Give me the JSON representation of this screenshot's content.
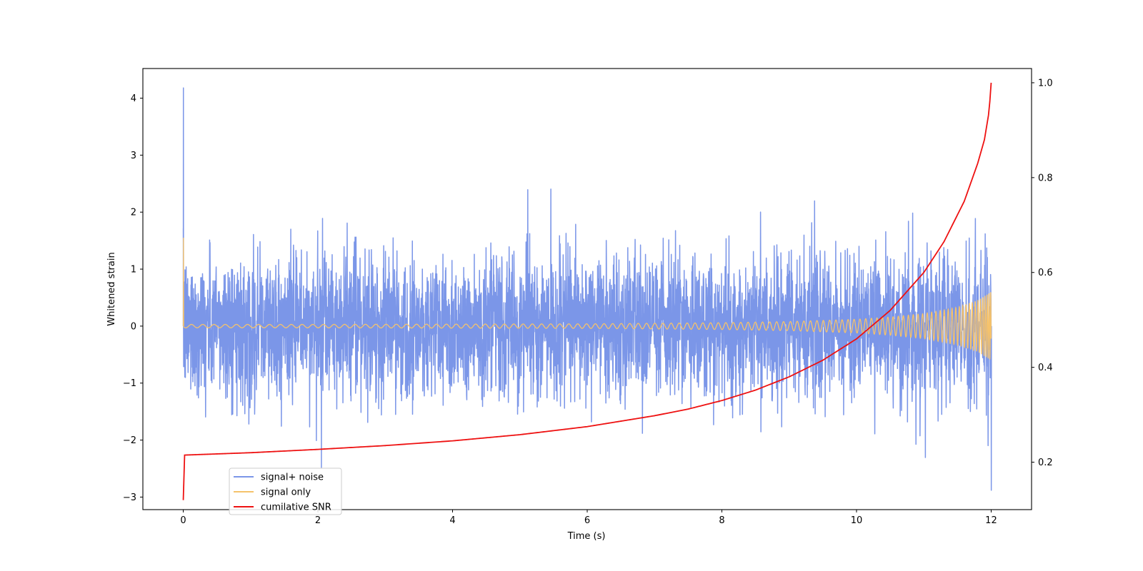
{
  "chart_data": {
    "type": "line",
    "xlabel": "Time (s)",
    "ylabel": "Whitened strain",
    "xlim": [
      -0.6,
      12.6
    ],
    "ylim": [
      -3.22,
      4.52
    ],
    "y2lim": [
      0.1,
      1.03
    ],
    "x_ticks": [
      0,
      2,
      4,
      6,
      8,
      10,
      12
    ],
    "y_ticks": [
      -3,
      -2,
      -1,
      0,
      1,
      2,
      3,
      4
    ],
    "y2_ticks": [
      0.2,
      0.4,
      0.6,
      0.8,
      1.0
    ],
    "x_tick_labels": [
      "0",
      "2",
      "4",
      "6",
      "8",
      "10",
      "12"
    ],
    "y_tick_labels": [
      "−3",
      "−2",
      "−1",
      "0",
      "1",
      "2",
      "3",
      "4"
    ],
    "y2_tick_labels": [
      "0.2",
      "0.4",
      "0.6",
      "0.8",
      "1.0"
    ],
    "grid": false,
    "legend_position": "lower-left",
    "series": [
      {
        "name": "signal+ noise",
        "color": "#7b96e8",
        "axis": "left",
        "description": "whitened data: signal plus approximately unit-variance noise, t from 0 to 12 s",
        "noise_std": 0.62,
        "x_range": [
          0,
          12
        ],
        "notable_points": [
          {
            "x": 0.0,
            "y": 4.18
          },
          {
            "x": 2.05,
            "y": -2.48
          },
          {
            "x": 12.0,
            "y": -2.88
          }
        ]
      },
      {
        "name": "signal only",
        "color": "#f5c26b",
        "axis": "left",
        "description": "chirp signal, amplitude grows from about 0.03 to 0.6 as t approaches 12 s",
        "x": [
          0,
          2,
          4,
          6,
          8,
          9,
          10,
          10.5,
          11,
          11.5,
          11.8,
          12
        ],
        "amplitude": [
          0.03,
          0.03,
          0.035,
          0.04,
          0.06,
          0.08,
          0.12,
          0.16,
          0.22,
          0.33,
          0.45,
          0.6
        ]
      },
      {
        "name": "cumilative SNR",
        "color": "#ee1111",
        "axis": "right",
        "x": [
          0,
          0.02,
          1,
          2,
          3,
          4,
          5,
          6,
          7,
          7.5,
          8,
          8.5,
          9,
          9.5,
          10,
          10.5,
          11,
          11.3,
          11.6,
          11.8,
          11.9,
          11.97,
          12.0
        ],
        "y": [
          0.12,
          0.215,
          0.22,
          0.227,
          0.235,
          0.245,
          0.258,
          0.275,
          0.298,
          0.312,
          0.33,
          0.352,
          0.38,
          0.415,
          0.46,
          0.52,
          0.6,
          0.665,
          0.75,
          0.83,
          0.88,
          0.94,
          1.0
        ]
      }
    ]
  }
}
